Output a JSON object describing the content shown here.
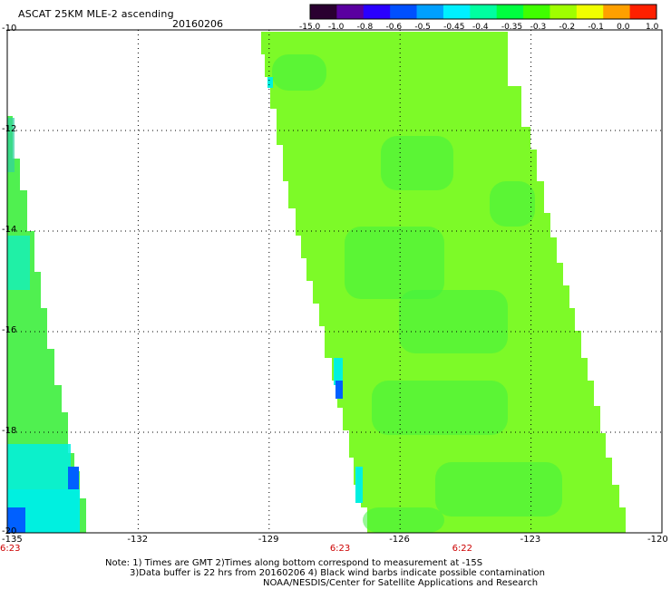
{
  "header": {
    "title": "ASCAT 25KM MLE-2 ascending",
    "date": "20160206"
  },
  "colorbar": {
    "labels": [
      "-15.0",
      "-1.0",
      "-0.8",
      "-0.6",
      "-0.5",
      "-0.45",
      "-0.4",
      "-0.35",
      "-0.3",
      "-0.2",
      "-0.1",
      "0.0",
      "1.0"
    ],
    "colors": [
      "#2a0030",
      "#5a00a0",
      "#2a00ff",
      "#0050ff",
      "#00a0ff",
      "#00f0ff",
      "#00ffa0",
      "#00ff40",
      "#40ff00",
      "#a0ff00",
      "#f0ff00",
      "#ffa000",
      "#ff2000"
    ]
  },
  "map": {
    "lon_ticks": [
      "-135",
      "-132",
      "-129",
      "-126",
      "-123",
      "-120"
    ],
    "lat_ticks": [
      "-10",
      "-12",
      "-14",
      "-16",
      "-18",
      "-20"
    ],
    "lon_range": [
      -135,
      -120
    ],
    "lat_range": [
      -20,
      -10
    ],
    "times": [
      {
        "label": "6:23",
        "lon": -135
      },
      {
        "label": "6:23",
        "lon": -127.4
      },
      {
        "label": "6:22",
        "lon": -124.6
      }
    ],
    "swath_colors": {
      "main": "#7dfa28",
      "dark": "#40f040",
      "cyan": "#00f0e0",
      "blue": "#0060ff"
    }
  },
  "notes": {
    "line1": "Note: 1) Times are GMT 2)Times along bottom correspond to measurement at -15S",
    "line2": "3)Data buffer is 22 hrs from 20160206 4) Black wind barbs indicate possible contamination",
    "line3": "NOAA/NESDIS/Center for Satellite Applications and Research"
  }
}
